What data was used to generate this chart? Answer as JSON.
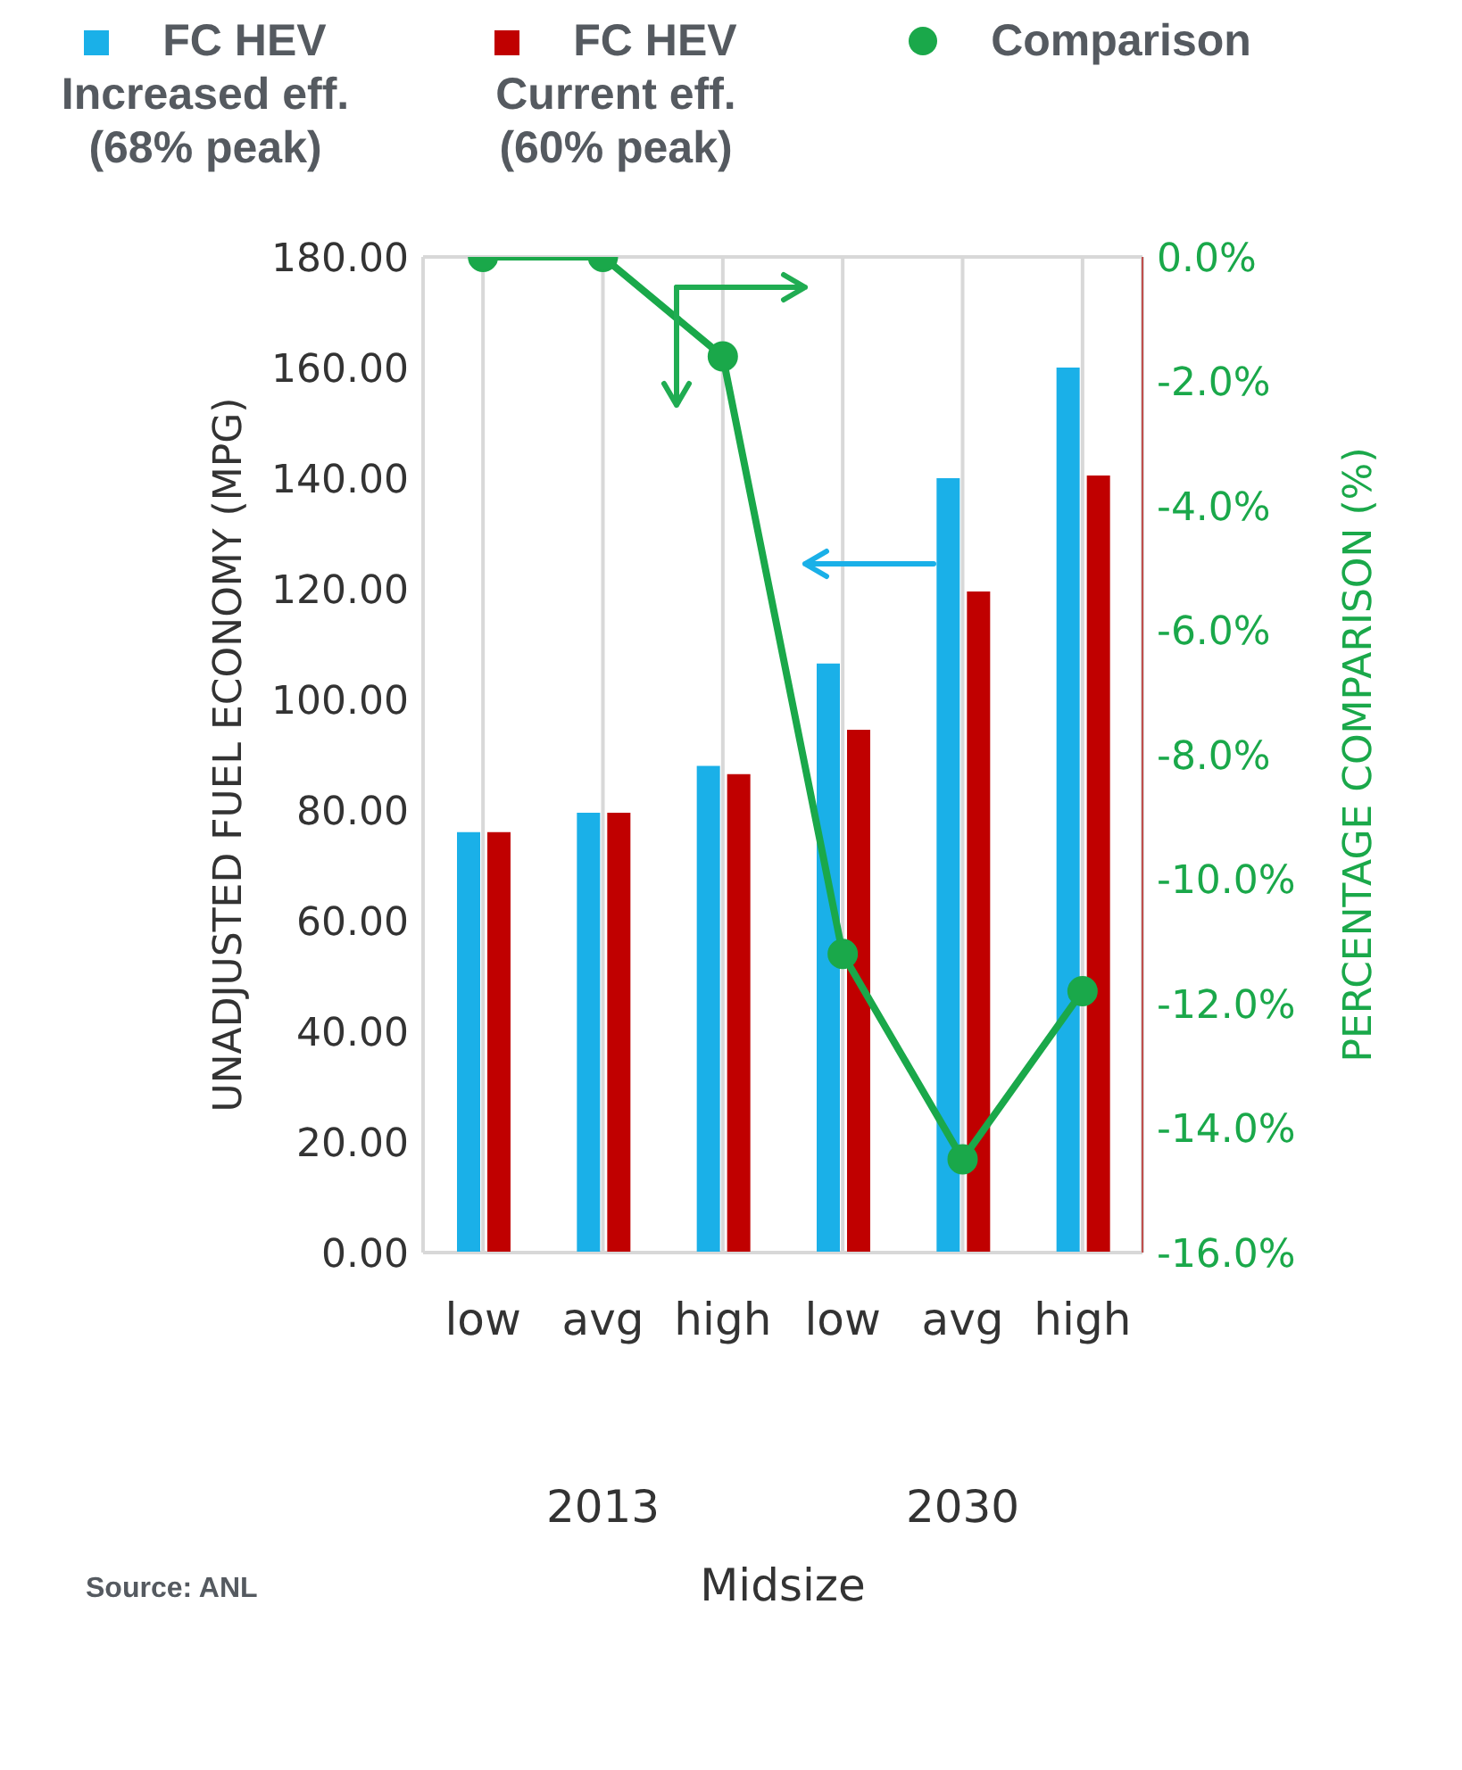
{
  "chart_data": {
    "type": "bar",
    "xlabel": "Midsize",
    "ylabel": "UNADJUSTED FUEL ECONOMY (MPG)",
    "y2label": "PERCENTAGE COMPARISON (%)",
    "categories": [
      "low",
      "avg",
      "high",
      "low",
      "avg",
      "high"
    ],
    "series": [
      {
        "name": "FC HEV Increased eff. (68% peak)",
        "color": "#1ab0e8",
        "values": [
          76,
          79.5,
          88,
          106.5,
          140,
          160
        ]
      },
      {
        "name": "FC HEV Current eff. (60% peak)",
        "color": "#c00000",
        "values": [
          76,
          79.5,
          86.5,
          94.5,
          119.5,
          140.5
        ]
      },
      {
        "name": "Comparison",
        "type": "line",
        "axis": "y2",
        "color": "#1aa84a",
        "values": [
          0,
          0,
          -1.6,
          -11.2,
          -14.5,
          -11.8
        ]
      }
    ],
    "ylim": [
      0,
      180
    ],
    "yticks": [
      {
        "value": 0,
        "label": "0.00"
      },
      {
        "value": 20,
        "label": "20.00"
      },
      {
        "value": 40,
        "label": "40.00"
      },
      {
        "value": 60,
        "label": "60.00"
      },
      {
        "value": 80,
        "label": "80.00"
      },
      {
        "value": 100,
        "label": "100.00"
      },
      {
        "value": 120,
        "label": "120.00"
      },
      {
        "value": 140,
        "label": "140.00"
      },
      {
        "value": 160,
        "label": "160.00"
      },
      {
        "value": 180,
        "label": "180.00"
      }
    ],
    "y2lim": [
      -16,
      0
    ],
    "y2ticks": [
      {
        "value": 0,
        "label": "0.0%"
      },
      {
        "value": -2,
        "label": "-2.0%"
      },
      {
        "value": -4,
        "label": "-4.0%"
      },
      {
        "value": -6,
        "label": "-6.0%"
      },
      {
        "value": -8,
        "label": "-8.0%"
      },
      {
        "value": -10,
        "label": "-10.0%"
      },
      {
        "value": -12,
        "label": "-12.0%"
      },
      {
        "value": -14,
        "label": "-14.0%"
      },
      {
        "value": -16,
        "label": "-16.0%"
      }
    ],
    "annotations": [
      "2013",
      "2030",
      "Source: ANL"
    ],
    "grid": true,
    "legend": "top",
    "marker": "circle",
    "line_style": "solid"
  }
}
